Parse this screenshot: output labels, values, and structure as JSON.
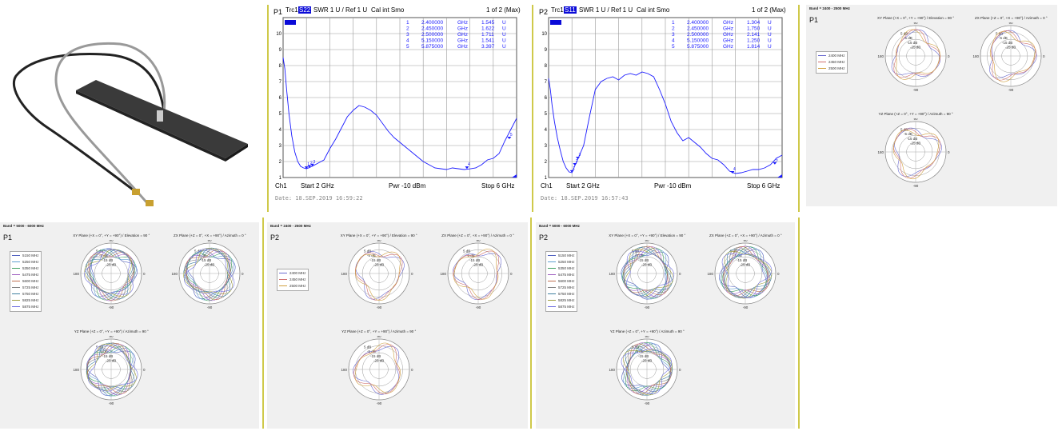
{
  "vna": [
    {
      "port": "P1",
      "trace": "Trc1",
      "param": "S22",
      "mode": "SWR  1 U /  Ref 1 U",
      "cal": "Cal int Smo",
      "pages": "1 of 2 (Max)",
      "markers": [
        {
          "id": "1",
          "freq": "2.400000",
          "unit": "GHz",
          "value": "1.545",
          "vunit": "U"
        },
        {
          "id": "2",
          "freq": "2.450000",
          "unit": "GHz",
          "value": "1.622",
          "vunit": "U"
        },
        {
          "id": "3",
          "freq": "2.500000",
          "unit": "GHz",
          "value": "1.711",
          "vunit": "U"
        },
        {
          "id": "4",
          "freq": "5.150000",
          "unit": "GHz",
          "value": "1.541",
          "vunit": "U"
        },
        {
          "id": "5",
          "freq": "5.875000",
          "unit": "GHz",
          "value": "3.397",
          "vunit": "U"
        }
      ],
      "yticks": [
        "10",
        "9",
        "8",
        "7",
        "6",
        "5",
        "4",
        "3",
        "2",
        "1"
      ],
      "channel": "Ch1",
      "start": "Start  2 GHz",
      "power": "Pwr -10 dBm",
      "stop": "Stop  6 GHz",
      "date": "Date: 18.SEP.2019  16:59:22"
    },
    {
      "port": "P2",
      "trace": "Trc1",
      "param": "S11",
      "mode": "SWR  1 U /  Ref 1 U",
      "cal": "Cal int Smo",
      "pages": "1 of 2 (Max)",
      "markers": [
        {
          "id": "1",
          "freq": "2.400000",
          "unit": "GHz",
          "value": "1.304",
          "vunit": "U"
        },
        {
          "id": "2",
          "freq": "2.450000",
          "unit": "GHz",
          "value": "1.750",
          "vunit": "U"
        },
        {
          "id": "3",
          "freq": "2.500000",
          "unit": "GHz",
          "value": "2.141",
          "vunit": "U"
        },
        {
          "id": "4",
          "freq": "5.150000",
          "unit": "GHz",
          "value": "1.250",
          "vunit": "U"
        },
        {
          "id": "5",
          "freq": "5.875000",
          "unit": "GHz",
          "value": "1.814",
          "vunit": "U"
        }
      ],
      "yticks": [
        "10",
        "9",
        "8",
        "7",
        "6",
        "5",
        "4",
        "3",
        "2",
        "1"
      ],
      "channel": "Ch1",
      "start": "Start  2 GHz",
      "power": "Pwr -10 dBm",
      "stop": "Stop  6 GHz",
      "date": "Date: 18.SEP.2019  16:57:43"
    }
  ],
  "polar_panels": [
    {
      "band": "Band = 2400 - 2500 MHz",
      "port": "P1",
      "legend": [
        "2400 MHz",
        "2450 MHz",
        "2500 MHz"
      ]
    },
    {
      "band": "Band = 5000 - 6000 MHz",
      "port": "P1",
      "legend": [
        "5150 MHz",
        "5250 MHz",
        "5350 MHz",
        "5475 MHz",
        "5600 MHz",
        "5725 MHz",
        "5750 MHz",
        "5825 MHz",
        "5875 MHz"
      ]
    },
    {
      "band": "Band = 2400 - 2500 MHz",
      "port": "P2",
      "legend": [
        "2400 MHz",
        "2450 MHz",
        "2500 MHz"
      ]
    },
    {
      "band": "Band = 5000 - 6000 MHz",
      "port": "P2",
      "legend": [
        "5150 MHz",
        "5250 MHz",
        "5350 MHz",
        "5475 MHz",
        "5600 MHz",
        "5725 MHz",
        "5750 MHz",
        "5825 MHz",
        "5875 MHz"
      ]
    }
  ],
  "plane_titles": {
    "xy": "XY Plane (+X = 0°, +Y = +90°) / Elevation = 90 °",
    "zx": "ZX Plane (+Z = 0°, +X = +90°) / Azimuth = 0 °",
    "yz": "YZ Plane (+Z = 0°, +Y = +90°) / Azimuth = 90 °"
  },
  "polar_labels": {
    "top": "90",
    "bottom": "-90",
    "left": "180",
    "right": "0",
    "rings": [
      "5 dB",
      "-5 dB",
      "-15 dB",
      "-25 dB"
    ]
  },
  "colors": {
    "trace": "#1a1aff",
    "grid": "#9a9a9a",
    "highlight": "#0a0ad8",
    "separator": "#cfc94a",
    "panel_bg": "#f0f0f0",
    "series_2g": [
      "#6a6ad0",
      "#d07070",
      "#d0a040"
    ],
    "series_5g": [
      "#5060c0",
      "#60a0d0",
      "#40a060",
      "#a060c0",
      "#c07050",
      "#808080",
      "#4080a0",
      "#a0a040",
      "#7070e0"
    ]
  },
  "chart_data": [
    {
      "type": "line",
      "title": "Trc1 S22 SWR",
      "xlabel": "",
      "ylabel": "",
      "xlim": [
        2,
        6
      ],
      "ylim": [
        1,
        11
      ],
      "x": [
        2.0,
        2.03,
        2.06,
        2.1,
        2.15,
        2.2,
        2.25,
        2.3,
        2.35,
        2.4,
        2.45,
        2.5,
        2.6,
        2.7,
        2.8,
        2.9,
        3.0,
        3.1,
        3.2,
        3.3,
        3.4,
        3.5,
        3.6,
        3.7,
        3.8,
        3.9,
        4.0,
        4.1,
        4.2,
        4.3,
        4.4,
        4.5,
        4.6,
        4.7,
        4.8,
        4.9,
        5.0,
        5.1,
        5.2,
        5.3,
        5.4,
        5.5,
        5.6,
        5.7,
        5.8,
        5.9,
        6.0
      ],
      "series": [
        {
          "values": [
            8.5,
            7.8,
            6.5,
            5.0,
            3.6,
            2.6,
            2.0,
            1.7,
            1.6,
            1.55,
            1.62,
            1.71,
            1.9,
            2.1,
            2.8,
            3.4,
            4.1,
            4.8,
            5.2,
            5.5,
            5.4,
            5.2,
            4.9,
            4.4,
            3.9,
            3.5,
            3.2,
            2.9,
            2.6,
            2.3,
            2.0,
            1.8,
            1.6,
            1.55,
            1.5,
            1.6,
            1.55,
            1.5,
            1.54,
            1.6,
            1.8,
            2.1,
            2.2,
            2.5,
            3.3,
            4.0,
            4.7
          ]
        }
      ]
    },
    {
      "type": "line",
      "title": "Trc1 S11 SWR",
      "xlabel": "",
      "ylabel": "",
      "xlim": [
        2,
        6
      ],
      "ylim": [
        1,
        11
      ],
      "x": [
        2.0,
        2.03,
        2.06,
        2.1,
        2.15,
        2.2,
        2.25,
        2.3,
        2.35,
        2.4,
        2.45,
        2.5,
        2.6,
        2.7,
        2.8,
        2.9,
        3.0,
        3.1,
        3.2,
        3.3,
        3.4,
        3.5,
        3.6,
        3.7,
        3.8,
        3.9,
        4.0,
        4.1,
        4.2,
        4.3,
        4.4,
        4.5,
        4.6,
        4.7,
        4.8,
        4.9,
        5.0,
        5.1,
        5.2,
        5.3,
        5.4,
        5.5,
        5.6,
        5.7,
        5.8,
        5.9,
        6.0
      ],
      "series": [
        {
          "values": [
            7.2,
            6.5,
            5.5,
            4.5,
            3.5,
            2.7,
            2.0,
            1.6,
            1.35,
            1.3,
            1.75,
            2.14,
            3.0,
            4.8,
            6.5,
            7.0,
            7.2,
            7.3,
            7.1,
            7.4,
            7.5,
            7.4,
            7.6,
            7.5,
            7.3,
            6.5,
            5.6,
            4.5,
            3.8,
            3.3,
            3.5,
            3.2,
            2.9,
            2.5,
            2.2,
            2.1,
            1.8,
            1.4,
            1.25,
            1.3,
            1.4,
            1.5,
            1.5,
            1.6,
            1.8,
            2.2,
            2.4
          ]
        }
      ]
    }
  ]
}
